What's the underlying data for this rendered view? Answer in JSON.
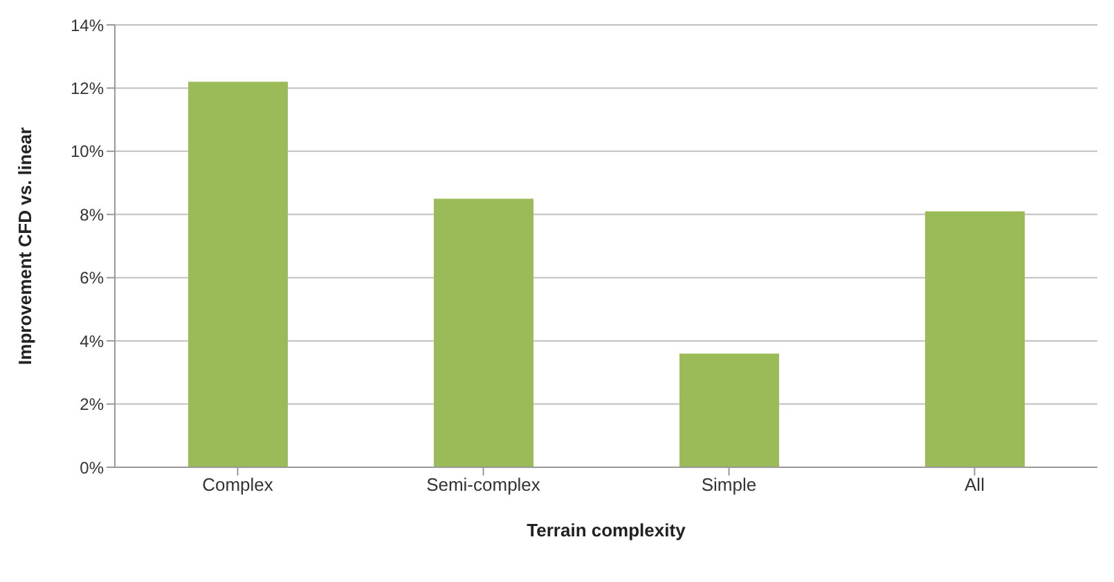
{
  "chart_data": {
    "type": "bar",
    "xlabel": "Terrain complexity",
    "ylabel": "Improvement CFD vs. linear",
    "categories": [
      "Complex",
      "Semi-complex",
      "Simple",
      "All"
    ],
    "values": [
      12.2,
      8.5,
      3.6,
      8.1
    ],
    "color": "#9bbb59",
    "ylim": [
      0,
      14
    ],
    "yticks": [
      {
        "value": 0,
        "label": "0%"
      },
      {
        "value": 2,
        "label": "2%"
      },
      {
        "value": 4,
        "label": "4%"
      },
      {
        "value": 6,
        "label": "6%"
      },
      {
        "value": 8,
        "label": "8%"
      },
      {
        "value": 10,
        "label": "10%"
      },
      {
        "value": 12,
        "label": "12%"
      },
      {
        "value": 14,
        "label": "14%"
      }
    ],
    "grid": "y"
  }
}
